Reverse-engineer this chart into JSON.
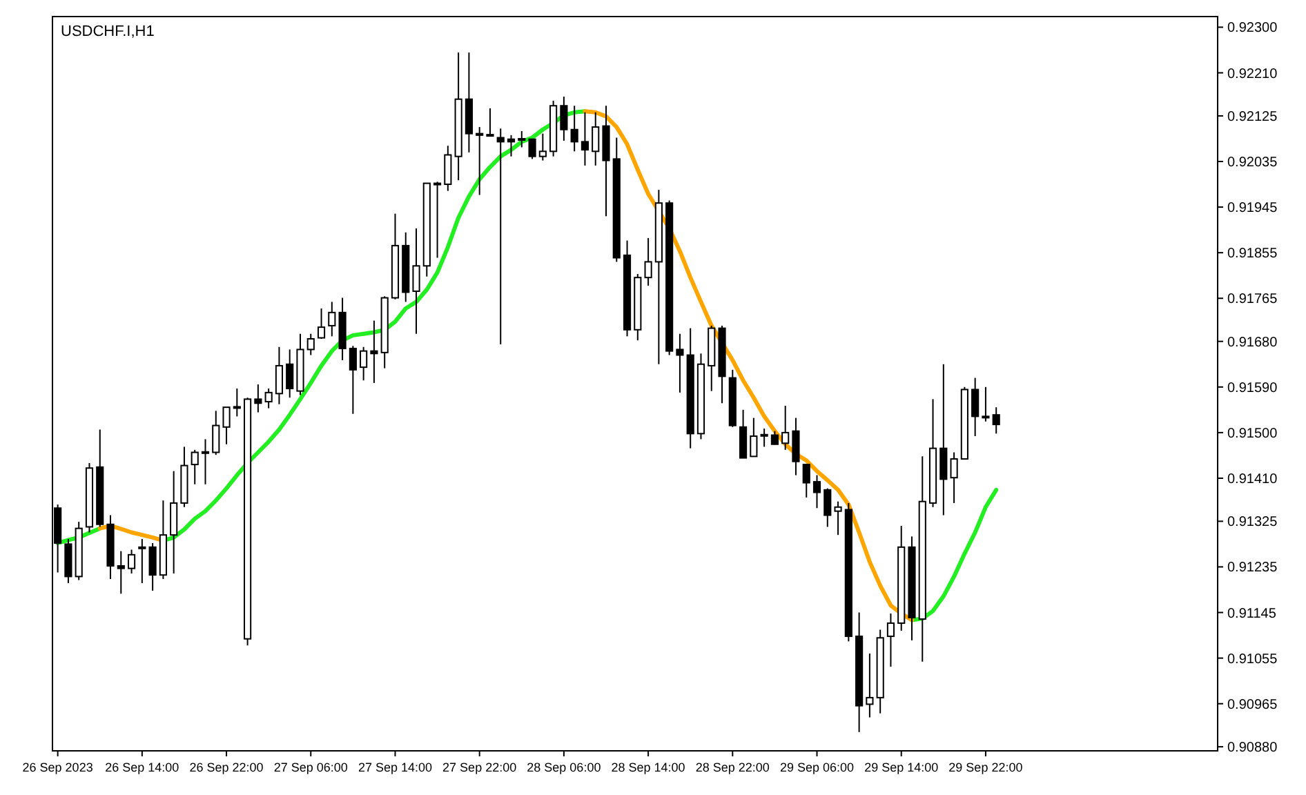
{
  "chart_data": {
    "type": "candlestick",
    "title": "USDCHF.I,H1",
    "color": "#000000",
    "grid": false,
    "x": [
      "2023-09-26T06:00",
      "2023-09-26T07:00",
      "2023-09-26T08:00",
      "2023-09-26T09:00",
      "2023-09-26T10:00",
      "2023-09-26T11:00",
      "2023-09-26T12:00",
      "2023-09-26T13:00",
      "2023-09-26T14:00",
      "2023-09-26T15:00",
      "2023-09-26T16:00",
      "2023-09-26T17:00",
      "2023-09-26T18:00",
      "2023-09-26T19:00",
      "2023-09-26T20:00",
      "2023-09-26T21:00",
      "2023-09-26T22:00",
      "2023-09-26T23:00",
      "2023-09-27T00:00",
      "2023-09-27T01:00",
      "2023-09-27T02:00",
      "2023-09-27T03:00",
      "2023-09-27T04:00",
      "2023-09-27T05:00",
      "2023-09-27T06:00",
      "2023-09-27T07:00",
      "2023-09-27T08:00",
      "2023-09-27T09:00",
      "2023-09-27T10:00",
      "2023-09-27T11:00",
      "2023-09-27T12:00",
      "2023-09-27T13:00",
      "2023-09-27T14:00",
      "2023-09-27T15:00",
      "2023-09-27T16:00",
      "2023-09-27T17:00",
      "2023-09-27T18:00",
      "2023-09-27T19:00",
      "2023-09-27T20:00",
      "2023-09-27T21:00",
      "2023-09-27T22:00",
      "2023-09-27T23:00",
      "2023-09-28T00:00",
      "2023-09-28T01:00",
      "2023-09-28T02:00",
      "2023-09-28T03:00",
      "2023-09-28T04:00",
      "2023-09-28T05:00",
      "2023-09-28T06:00",
      "2023-09-28T07:00",
      "2023-09-28T08:00",
      "2023-09-28T09:00",
      "2023-09-28T10:00",
      "2023-09-28T11:00",
      "2023-09-28T12:00",
      "2023-09-28T13:00",
      "2023-09-28T14:00",
      "2023-09-28T15:00",
      "2023-09-28T16:00",
      "2023-09-28T17:00",
      "2023-09-28T18:00",
      "2023-09-28T19:00",
      "2023-09-28T20:00",
      "2023-09-28T21:00",
      "2023-09-28T22:00",
      "2023-09-28T23:00",
      "2023-09-29T00:00",
      "2023-09-29T01:00",
      "2023-09-29T02:00",
      "2023-09-29T03:00",
      "2023-09-29T04:00",
      "2023-09-29T05:00",
      "2023-09-29T06:00",
      "2023-09-29T07:00",
      "2023-09-29T08:00",
      "2023-09-29T09:00",
      "2023-09-29T10:00",
      "2023-09-29T11:00",
      "2023-09-29T12:00",
      "2023-09-29T13:00",
      "2023-09-29T14:00",
      "2023-09-29T15:00",
      "2023-09-29T16:00",
      "2023-09-29T17:00",
      "2023-09-29T18:00",
      "2023-09-29T19:00",
      "2023-09-29T20:00",
      "2023-09-29T21:00",
      "2023-09-29T22:00",
      "2023-09-29T23:00"
    ],
    "ohlc": [
      [
        0.91351,
        0.91358,
        0.91224,
        0.91282
      ],
      [
        0.9128,
        0.9129,
        0.91203,
        0.91216
      ],
      [
        0.91216,
        0.91324,
        0.91209,
        0.91311
      ],
      [
        0.91314,
        0.9144,
        0.91303,
        0.9143
      ],
      [
        0.91432,
        0.91506,
        0.91314,
        0.91319
      ],
      [
        0.91319,
        0.91337,
        0.91211,
        0.91237
      ],
      [
        0.91237,
        0.91266,
        0.91182,
        0.91232
      ],
      [
        0.91232,
        0.91269,
        0.91222,
        0.91259
      ],
      [
        0.91272,
        0.9129,
        0.91203,
        0.91274
      ],
      [
        0.91274,
        0.91282,
        0.91188,
        0.91219
      ],
      [
        0.91219,
        0.91366,
        0.91211,
        0.91298
      ],
      [
        0.91298,
        0.91424,
        0.91222,
        0.91361
      ],
      [
        0.91361,
        0.91472,
        0.91353,
        0.91435
      ],
      [
        0.91437,
        0.91466,
        0.91398,
        0.91461
      ],
      [
        0.91461,
        0.91487,
        0.91398,
        0.91462
      ],
      [
        0.91461,
        0.91543,
        0.91456,
        0.91514
      ],
      [
        0.91511,
        0.9155,
        0.91477,
        0.9155
      ],
      [
        0.9155,
        0.91587,
        0.91532,
        0.91551
      ],
      [
        0.91093,
        0.91569,
        0.9108,
        0.91566
      ],
      [
        0.91566,
        0.91595,
        0.9154,
        0.91558
      ],
      [
        0.91561,
        0.91587,
        0.91548,
        0.91579
      ],
      [
        0.91577,
        0.91669,
        0.91556,
        0.91632
      ],
      [
        0.91635,
        0.91664,
        0.91569,
        0.91587
      ],
      [
        0.91582,
        0.91695,
        0.91574,
        0.91664
      ],
      [
        0.91664,
        0.91695,
        0.91653,
        0.91685
      ],
      [
        0.91687,
        0.91745,
        0.91685,
        0.91708
      ],
      [
        0.91711,
        0.91758,
        0.9169,
        0.91737
      ],
      [
        0.91737,
        0.91766,
        0.91643,
        0.91666
      ],
      [
        0.91666,
        0.91671,
        0.91537,
        0.91624
      ],
      [
        0.91629,
        0.91669,
        0.91603,
        0.91661
      ],
      [
        0.91661,
        0.91721,
        0.91598,
        0.91656
      ],
      [
        0.91658,
        0.91769,
        0.91627,
        0.91766
      ],
      [
        0.91766,
        0.91932,
        0.91763,
        0.91869
      ],
      [
        0.91869,
        0.91895,
        0.91758,
        0.91777
      ],
      [
        0.91779,
        0.91903,
        0.91695,
        0.91829
      ],
      [
        0.91829,
        0.91992,
        0.91808,
        0.91992
      ],
      [
        0.9199,
        0.91995,
        0.91845,
        0.91992
      ],
      [
        0.9199,
        0.92066,
        0.91977,
        0.92048
      ],
      [
        0.92045,
        0.9225,
        0.91998,
        0.92158
      ],
      [
        0.92158,
        0.9225,
        0.92053,
        0.9209
      ],
      [
        0.9209,
        0.92103,
        0.91969,
        0.92087
      ],
      [
        0.92087,
        0.9214,
        0.92084,
        0.92088
      ],
      [
        0.92082,
        0.921,
        0.91674,
        0.92074
      ],
      [
        0.92079,
        0.92087,
        0.92045,
        0.92074
      ],
      [
        0.92079,
        0.92095,
        0.92063,
        0.9208
      ],
      [
        0.92079,
        0.9208,
        0.9204,
        0.92045
      ],
      [
        0.92045,
        0.9209,
        0.92037,
        0.92055
      ],
      [
        0.92055,
        0.92155,
        0.92045,
        0.92145
      ],
      [
        0.92145,
        0.92163,
        0.92076,
        0.92098
      ],
      [
        0.92098,
        0.92145,
        0.92055,
        0.92074
      ],
      [
        0.92074,
        0.92132,
        0.92027,
        0.92058
      ],
      [
        0.92055,
        0.92132,
        0.92027,
        0.92103
      ],
      [
        0.92105,
        0.92145,
        0.91927,
        0.92037
      ],
      [
        0.9204,
        0.92082,
        0.91837,
        0.91845
      ],
      [
        0.9185,
        0.91879,
        0.9169,
        0.91703
      ],
      [
        0.91703,
        0.91813,
        0.91682,
        0.91806
      ],
      [
        0.91806,
        0.91884,
        0.9179,
        0.91837
      ],
      [
        0.91837,
        0.91979,
        0.91635,
        0.91953
      ],
      [
        0.91953,
        0.91958,
        0.91653,
        0.91661
      ],
      [
        0.91664,
        0.91695,
        0.91579,
        0.91653
      ],
      [
        0.91653,
        0.91706,
        0.91469,
        0.91498
      ],
      [
        0.91498,
        0.91656,
        0.91487,
        0.91635
      ],
      [
        0.91632,
        0.91711,
        0.91582,
        0.91706
      ],
      [
        0.91706,
        0.91711,
        0.91558,
        0.91611
      ],
      [
        0.91608,
        0.91624,
        0.91511,
        0.91514
      ],
      [
        0.91511,
        0.91545,
        0.9145,
        0.9145
      ],
      [
        0.91453,
        0.91529,
        0.91453,
        0.91493
      ],
      [
        0.91495,
        0.91508,
        0.91472,
        0.91496
      ],
      [
        0.91495,
        0.91503,
        0.91476,
        0.91477
      ],
      [
        0.91479,
        0.91553,
        0.91466,
        0.915
      ],
      [
        0.91503,
        0.91529,
        0.91416,
        0.91443
      ],
      [
        0.91437,
        0.91438,
        0.91372,
        0.91401
      ],
      [
        0.91403,
        0.91416,
        0.91351,
        0.91382
      ],
      [
        0.91387,
        0.9139,
        0.91314,
        0.91337
      ],
      [
        0.91345,
        0.91364,
        0.91298,
        0.91353
      ],
      [
        0.91348,
        0.91361,
        0.91088,
        0.91098
      ],
      [
        0.91098,
        0.91145,
        0.90909,
        0.90961
      ],
      [
        0.90964,
        0.91064,
        0.90938,
        0.90977
      ],
      [
        0.90977,
        0.91111,
        0.90946,
        0.91095
      ],
      [
        0.91098,
        0.91143,
        0.91038,
        0.91124
      ],
      [
        0.91124,
        0.91316,
        0.91109,
        0.91274
      ],
      [
        0.91274,
        0.91295,
        0.9109,
        0.91135
      ],
      [
        0.91132,
        0.91453,
        0.91048,
        0.91364
      ],
      [
        0.91361,
        0.91566,
        0.91353,
        0.91469
      ],
      [
        0.91469,
        0.91635,
        0.91337,
        0.91408
      ],
      [
        0.91411,
        0.91461,
        0.91361,
        0.91448
      ],
      [
        0.91448,
        0.9159,
        0.91448,
        0.91585
      ],
      [
        0.91585,
        0.91608,
        0.91493,
        0.91532
      ],
      [
        0.91532,
        0.9159,
        0.91522,
        0.91531
      ],
      [
        0.91535,
        0.9155,
        0.91498,
        0.91516
      ]
    ],
    "series": [
      {
        "type": "line",
        "color": "#22ee22",
        "values": [
          0.91282,
          0.91288,
          0.91293,
          0.91302,
          0.91311,
          null,
          null,
          null,
          null,
          null,
          0.91287,
          0.91293,
          0.91309,
          0.9133,
          0.91345,
          0.91366,
          0.9139,
          0.91416,
          0.9144,
          0.91461,
          0.91482,
          0.91506,
          0.91535,
          0.91566,
          0.91598,
          0.91632,
          0.91661,
          0.91682,
          0.91692,
          0.91695,
          0.91698,
          0.91703,
          0.91719,
          0.91745,
          0.91758,
          0.91782,
          0.91816,
          0.91866,
          0.91924,
          0.91966,
          0.92,
          0.92024,
          0.92045,
          0.92058,
          0.92074,
          0.92082,
          0.92098,
          0.92111,
          0.92126,
          0.92132,
          0.92134,
          null,
          null,
          null,
          null,
          null,
          null,
          null,
          null,
          null,
          null,
          null,
          null,
          null,
          null,
          null,
          null,
          null,
          null,
          null,
          null,
          null,
          null,
          null,
          null,
          null,
          null,
          null,
          null,
          null,
          null,
          0.9113,
          0.91133,
          0.91148,
          0.91177,
          0.91216,
          0.91261,
          0.91303,
          0.91353,
          0.91387
        ]
      },
      {
        "type": "line",
        "color": "#ffa500",
        "values": [
          null,
          null,
          null,
          null,
          0.91311,
          0.91316,
          0.9131,
          0.91303,
          0.91298,
          0.91293,
          0.91287,
          null,
          null,
          null,
          null,
          null,
          null,
          null,
          null,
          null,
          null,
          null,
          null,
          null,
          null,
          null,
          null,
          null,
          null,
          null,
          null,
          null,
          null,
          null,
          null,
          null,
          null,
          null,
          null,
          null,
          null,
          null,
          null,
          null,
          null,
          null,
          null,
          null,
          null,
          null,
          0.92134,
          0.92132,
          0.92124,
          0.92103,
          0.92069,
          0.92019,
          0.91971,
          0.91937,
          0.91903,
          0.91858,
          0.91806,
          0.91758,
          0.91711,
          0.91677,
          0.91643,
          0.91603,
          0.91569,
          0.91532,
          0.91503,
          0.91477,
          0.91458,
          0.91445,
          0.91424,
          0.91406,
          0.91387,
          0.91358,
          0.91303,
          0.91245,
          0.91198,
          0.91159,
          0.91143,
          0.9113,
          null,
          null,
          null,
          null,
          null,
          null,
          null,
          null
        ]
      }
    ],
    "xlim": [
      "2023-09-26T05:30",
      "2023-09-30T20:00"
    ],
    "xticks": [
      {
        "value": "2023-09-26T06:00",
        "label": "26 Sep 2023"
      },
      {
        "value": "2023-09-26T14:00",
        "label": "26 Sep 14:00"
      },
      {
        "value": "2023-09-26T22:00",
        "label": "26 Sep 22:00"
      },
      {
        "value": "2023-09-27T06:00",
        "label": "27 Sep 06:00"
      },
      {
        "value": "2023-09-27T14:00",
        "label": "27 Sep 14:00"
      },
      {
        "value": "2023-09-27T22:00",
        "label": "27 Sep 22:00"
      },
      {
        "value": "2023-09-28T06:00",
        "label": "28 Sep 06:00"
      },
      {
        "value": "2023-09-28T14:00",
        "label": "28 Sep 14:00"
      },
      {
        "value": "2023-09-28T22:00",
        "label": "28 Sep 22:00"
      },
      {
        "value": "2023-09-29T06:00",
        "label": "29 Sep 06:00"
      },
      {
        "value": "2023-09-29T14:00",
        "label": "29 Sep 14:00"
      },
      {
        "value": "2023-09-29T22:00",
        "label": "29 Sep 22:00"
      }
    ],
    "ylim": [
      0.90872,
      0.92321
    ],
    "yticks": [
      {
        "value": 0.923,
        "label": "0.92300"
      },
      {
        "value": 0.9221,
        "label": "0.92210"
      },
      {
        "value": 0.92125,
        "label": "0.92125"
      },
      {
        "value": 0.92035,
        "label": "0.92035"
      },
      {
        "value": 0.91945,
        "label": "0.91945"
      },
      {
        "value": 0.91855,
        "label": "0.91855"
      },
      {
        "value": 0.91765,
        "label": "0.91765"
      },
      {
        "value": 0.9168,
        "label": "0.91680"
      },
      {
        "value": 0.9159,
        "label": "0.91590"
      },
      {
        "value": 0.915,
        "label": "0.91500"
      },
      {
        "value": 0.9141,
        "label": "0.91410"
      },
      {
        "value": 0.91325,
        "label": "0.91325"
      },
      {
        "value": 0.91235,
        "label": "0.91235"
      },
      {
        "value": 0.91145,
        "label": "0.91145"
      },
      {
        "value": 0.91055,
        "label": "0.91055"
      },
      {
        "value": 0.90965,
        "label": "0.90965"
      },
      {
        "value": 0.9088,
        "label": "0.90880"
      }
    ]
  }
}
